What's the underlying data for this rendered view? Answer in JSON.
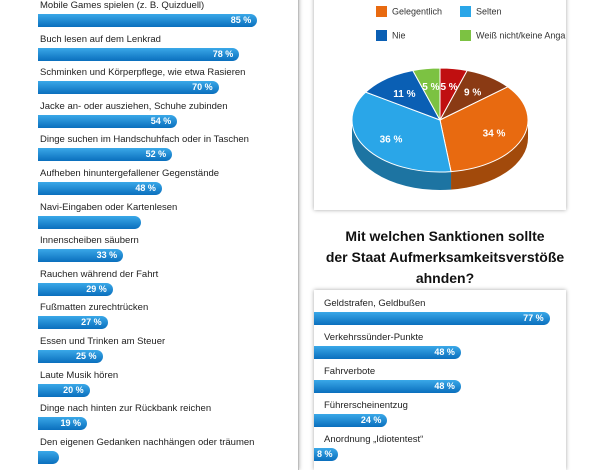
{
  "activities_chart": {
    "type": "bar",
    "categories": [
      "Mobile Games spielen (z. B. Quizduell)",
      "Buch lesen auf dem Lenkrad",
      "Schminken und Körperpflege, wie etwa Rasieren",
      "Jacke an- oder ausziehen, Schuhe zubinden",
      "Dinge suchen im Handschuhfach oder in Taschen",
      "Aufheben hinuntergefallener Gegenstände",
      "Navi-Eingaben oder Kartenlesen",
      "Innenscheiben säubern",
      "Rauchen während der Fahrt",
      "Fußmatten zurechtrücken",
      "Essen und Trinken am Steuer",
      "Laute Musik hören",
      "Dinge nach hinten zur Rückbank reichen",
      "Den eigenen Gedanken nachhängen oder träumen"
    ],
    "values": [
      85,
      78,
      70,
      54,
      52,
      48,
      40,
      33,
      29,
      27,
      25,
      20,
      19,
      8
    ],
    "labels": [
      "85 %",
      "78 %",
      "70 %",
      "54 %",
      "52 %",
      "48 %",
      "",
      "33 %",
      "29 %",
      "27 %",
      "25 %",
      "20 %",
      "19 %",
      ""
    ],
    "xlim": [
      0,
      100
    ]
  },
  "pie_chart": {
    "type": "pie",
    "legend": [
      "Gelegentlich",
      "Selten",
      "Nie",
      "Weiß nicht/keine Angabe"
    ],
    "legend_colors": [
      "#e86a10",
      "#2aa6e8",
      "#0a5fb4",
      "#7cc242"
    ],
    "slices": [
      {
        "value": 5,
        "label": "5 %",
        "color": "#c00f10"
      },
      {
        "value": 9,
        "label": "9 %",
        "color": "#8a3a14"
      },
      {
        "value": 34,
        "label": "34 %",
        "color": "#e86a10"
      },
      {
        "value": 36,
        "label": "36 %",
        "color": "#2aa6e8"
      },
      {
        "value": 11,
        "label": "11 %",
        "color": "#0a5fb4"
      },
      {
        "value": 5,
        "label": "5 %",
        "color": "#7cc242"
      }
    ]
  },
  "sanctions_title": [
    "Mit welchen Sanktionen sollte",
    "der Staat Aufmerksamkeitsverstöße",
    "ahnden?"
  ],
  "sanctions_chart": {
    "type": "bar",
    "categories": [
      "Geldstrafen, Geldbußen",
      "Verkehrssünder-Punkte",
      "Fahrverbote",
      "Führerscheinentzug",
      "Anordnung „Idiotentest“"
    ],
    "values": [
      77,
      48,
      48,
      24,
      8
    ],
    "labels": [
      "77 %",
      "48 %",
      "48 %",
      "24 %",
      "8 %"
    ],
    "xlim": [
      0,
      100
    ]
  }
}
